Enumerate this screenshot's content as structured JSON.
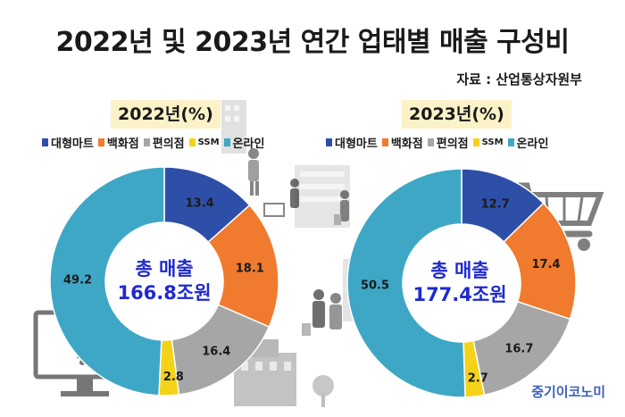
{
  "title": "2022년 및 2023년 연간 업태별 매출 구성비",
  "source": "자료 : 산업통상자원부",
  "brand": "중기이코노미",
  "colors": {
    "대형마트": "#2e4fa8",
    "백화점": "#f07a2d",
    "편의점": "#a6a6a6",
    "SSM": "#f5d21a",
    "온라인": "#3ea7c6"
  },
  "charts": [
    {
      "year_label": "2022년(%)",
      "center_line1": "총 매출",
      "center_line2": "166.8조원"
    },
    {
      "year_label": "2023년(%)",
      "center_line1": "총 매출",
      "center_line2": "177.4조원"
    }
  ],
  "chart_data": [
    {
      "type": "pie",
      "title": "2022년(%)",
      "labels": [
        "대형마트",
        "백화점",
        "편의점",
        "SSM",
        "온라인"
      ],
      "values": [
        13.4,
        18.1,
        16.4,
        2.8,
        49.2
      ],
      "value_labels": [
        "13.4",
        "18.1",
        "16.4",
        "2.8",
        "49.2"
      ],
      "center_text": "총 매출 166.8조원",
      "donut": true,
      "legend_position": "top"
    },
    {
      "type": "pie",
      "title": "2023년(%)",
      "labels": [
        "대형마트",
        "백화점",
        "편의점",
        "SSM",
        "온라인"
      ],
      "values": [
        12.7,
        17.4,
        16.7,
        2.7,
        50.5
      ],
      "value_labels": [
        "12.7",
        "17.4",
        "16.7",
        "2.7",
        "50.5"
      ],
      "center_text": "총 매출 177.4조원",
      "donut": true,
      "legend_position": "top"
    }
  ],
  "decor_icons": [
    "building-icon",
    "shopping-cart-icon",
    "shopper-icon",
    "computer-monitor-icon",
    "tree-icon"
  ]
}
